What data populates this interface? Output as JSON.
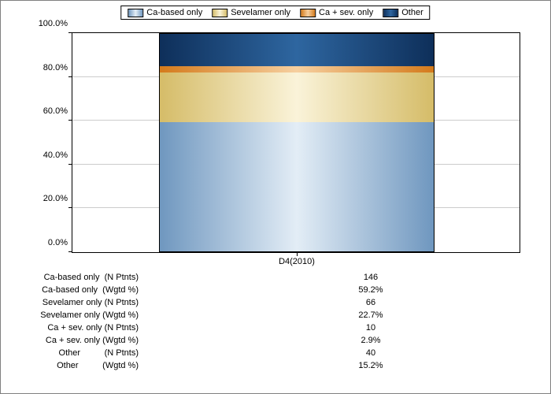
{
  "chart": {
    "type": "stacked-bar-100",
    "background_color": "#ffffff",
    "border_color": "#808080",
    "grid_color": "#cccccc",
    "axis_color": "#000000",
    "font_size": 11,
    "ylim": [
      0,
      100
    ],
    "ytick_step": 20,
    "yticks": [
      "0.0%",
      "20.0%",
      "40.0%",
      "60.0%",
      "80.0%",
      "100.0%"
    ],
    "categories": [
      "D4(2010)"
    ],
    "legend": {
      "items": [
        {
          "label": "Ca-based only",
          "color": "#6f97bf"
        },
        {
          "label": "Sevelamer only",
          "color": "#d5bc68"
        },
        {
          "label": "Ca + sev. only",
          "color": "#d47a1b"
        },
        {
          "label": "Other",
          "color": "#0e2f5a"
        }
      ]
    },
    "series": [
      {
        "name": "Ca-based only",
        "value_pct": 59.2,
        "n": 146,
        "color": "#6f97bf",
        "grad_class": "grad-blue"
      },
      {
        "name": "Sevelamer only",
        "value_pct": 22.7,
        "n": 66,
        "color": "#d5bc68",
        "grad_class": "grad-gold"
      },
      {
        "name": "Ca + sev. only",
        "value_pct": 2.9,
        "n": 10,
        "color": "#d47a1b",
        "grad_class": "grad-orange"
      },
      {
        "name": "Other",
        "value_pct": 15.2,
        "n": 40,
        "color": "#0e2f5a",
        "grad_class": "grad-navy"
      }
    ],
    "table_rows": [
      {
        "label": "Ca-based only  (N Ptnts)",
        "value": "146"
      },
      {
        "label": "Ca-based only  (Wgtd %)",
        "value": "59.2%"
      },
      {
        "label": "Sevelamer only (N Ptnts)",
        "value": "66"
      },
      {
        "label": "Sevelamer only (Wgtd %)",
        "value": "22.7%"
      },
      {
        "label": "Ca + sev. only (N Ptnts)",
        "value": "10"
      },
      {
        "label": "Ca + sev. only (Wgtd %)",
        "value": "2.9%"
      },
      {
        "label": "Other          (N Ptnts)",
        "value": "40"
      },
      {
        "label": "Other          (Wgtd %)",
        "value": "15.2%"
      }
    ]
  }
}
